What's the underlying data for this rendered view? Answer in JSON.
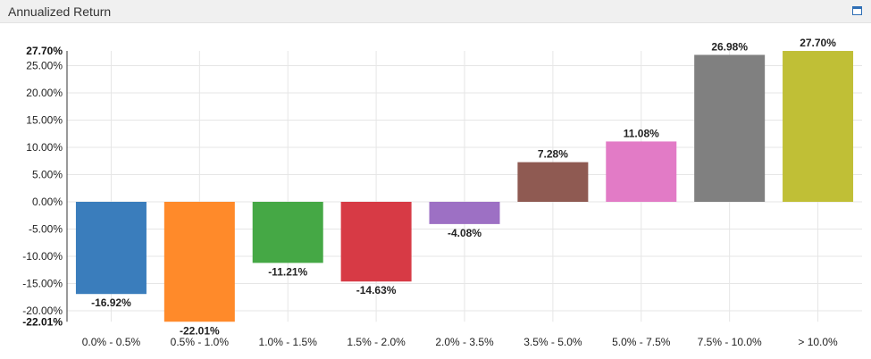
{
  "panel": {
    "title": "Annualized Return",
    "icons": {
      "window": "window-maximize-icon"
    }
  },
  "chart_data": {
    "type": "bar",
    "title": "",
    "xlabel": "",
    "ylabel": "",
    "categories": [
      "0.0% - 0.5%",
      "0.5% - 1.0%",
      "1.0% - 1.5%",
      "1.5% - 2.0%",
      "2.0% - 3.5%",
      "3.5% - 5.0%",
      "5.0% - 7.5%",
      "7.5% - 10.0%",
      "> 10.0%"
    ],
    "values": [
      -16.92,
      -22.01,
      -11.21,
      -14.63,
      -4.08,
      7.28,
      11.08,
      26.98,
      27.7
    ],
    "value_labels": [
      "-16.92%",
      "-22.01%",
      "-11.21%",
      "-14.63%",
      "-4.08%",
      "7.28%",
      "11.08%",
      "26.98%",
      "27.70%"
    ],
    "colors": [
      "#3a7dbc",
      "#ff8a2a",
      "#45a845",
      "#d73a45",
      "#9d70c4",
      "#8f5a52",
      "#e27bc6",
      "#808080",
      "#c0bf36"
    ],
    "ylim": [
      -22.01,
      27.7
    ],
    "yticks": [
      25,
      20,
      15,
      10,
      5,
      0,
      -5,
      -10,
      -15,
      -20
    ],
    "ytick_labels": [
      "25.00%",
      "20.00%",
      "15.00%",
      "10.00%",
      "5.00%",
      "0.00%",
      "-5.00%",
      "-10.00%",
      "-15.00%",
      "-20.00%"
    ],
    "ymax_label": "27.70%",
    "ymin_label": "-22.01%",
    "grid": true,
    "legend": "none"
  }
}
